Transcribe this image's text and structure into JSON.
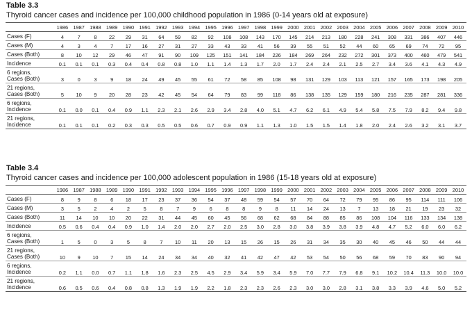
{
  "tables": [
    {
      "number": "Table 3.3",
      "caption": "Thyroid cancer cases and incidence per 100,000 childhood population in 1986 (0-14 years old at exposure)",
      "years": [
        "1986",
        "1987",
        "1988",
        "1989",
        "1990",
        "1991",
        "1992",
        "1993",
        "1994",
        "1995",
        "1996",
        "1997",
        "1998",
        "1999",
        "2000",
        "2001",
        "2002",
        "2003",
        "2004",
        "2005",
        "2006",
        "2007",
        "2008",
        "2009",
        "2010"
      ],
      "rows": [
        {
          "label": [
            "Cases (F)"
          ],
          "values": [
            "4",
            "7",
            "8",
            "22",
            "29",
            "31",
            "64",
            "59",
            "82",
            "92",
            "108",
            "108",
            "143",
            "170",
            "145",
            "214",
            "213",
            "180",
            "228",
            "241",
            "308",
            "331",
            "386",
            "407",
            "446"
          ]
        },
        {
          "label": [
            "Cases (M)"
          ],
          "values": [
            "4",
            "3",
            "4",
            "7",
            "17",
            "16",
            "27",
            "31",
            "27",
            "33",
            "43",
            "33",
            "41",
            "56",
            "39",
            "55",
            "51",
            "52",
            "44",
            "60",
            "65",
            "69",
            "74",
            "72",
            "95"
          ]
        },
        {
          "label": [
            "Cases (Both)"
          ],
          "values": [
            "8",
            "10",
            "12",
            "29",
            "46",
            "47",
            "91",
            "90",
            "109",
            "125",
            "151",
            "141",
            "184",
            "226",
            "184",
            "269",
            "264",
            "232",
            "272",
            "301",
            "373",
            "400",
            "460",
            "479",
            "541"
          ]
        },
        {
          "label": [
            "Incidence"
          ],
          "values": [
            "0.1",
            "0.1",
            "0.1",
            "0.3",
            "0.4",
            "0.4",
            "0.8",
            "0.8",
            "1.0",
            "1.1",
            "1.4",
            "1.3",
            "1.7",
            "2.0",
            "1.7",
            "2.4",
            "2.4",
            "2.1",
            "2.5",
            "2.7",
            "3.4",
            "3.6",
            "4.1",
            "4.3",
            "4.9"
          ]
        },
        {
          "label": [
            "6 regions,",
            "Cases (Both)"
          ],
          "values": [
            "3",
            "0",
            "3",
            "9",
            "18",
            "24",
            "49",
            "45",
            "55",
            "61",
            "72",
            "58",
            "85",
            "108",
            "98",
            "131",
            "129",
            "103",
            "113",
            "121",
            "157",
            "165",
            "173",
            "198",
            "205"
          ]
        },
        {
          "label": [
            "21 regions,",
            "Cases (Both)"
          ],
          "values": [
            "5",
            "10",
            "9",
            "20",
            "28",
            "23",
            "42",
            "45",
            "54",
            "64",
            "79",
            "83",
            "99",
            "118",
            "86",
            "138",
            "135",
            "129",
            "159",
            "180",
            "216",
            "235",
            "287",
            "281",
            "336"
          ]
        },
        {
          "label": [
            "6 regions,",
            "Incidence"
          ],
          "values": [
            "0.1",
            "0.0",
            "0.1",
            "0.4",
            "0.9",
            "1.1",
            "2.3",
            "2.1",
            "2.6",
            "2.9",
            "3.4",
            "2.8",
            "4.0",
            "5.1",
            "4.7",
            "6.2",
            "6.1",
            "4.9",
            "5.4",
            "5.8",
            "7.5",
            "7.9",
            "8.2",
            "9.4",
            "9.8"
          ]
        },
        {
          "label": [
            "21 regions,",
            "Incidence"
          ],
          "values": [
            "0.1",
            "0.1",
            "0.1",
            "0.2",
            "0.3",
            "0.3",
            "0.5",
            "0.5",
            "0.6",
            "0.7",
            "0.9",
            "0.9",
            "1.1",
            "1.3",
            "1.0",
            "1.5",
            "1.5",
            "1.4",
            "1.8",
            "2.0",
            "2.4",
            "2.6",
            "3.2",
            "3.1",
            "3.7"
          ]
        }
      ]
    },
    {
      "number": "Table 3.4",
      "caption": "Thyroid cancer cases and incidence per 100,000 adolescent population in 1986 (15-18 years old at exposure)",
      "years": [
        "1986",
        "1987",
        "1988",
        "1989",
        "1990",
        "1991",
        "1992",
        "1993",
        "1994",
        "1995",
        "1996",
        "1997",
        "1998",
        "1999",
        "2000",
        "2001",
        "2002",
        "2003",
        "2004",
        "2005",
        "2006",
        "2007",
        "2008",
        "2009",
        "2010"
      ],
      "rows": [
        {
          "label": [
            "Cases (F)"
          ],
          "values": [
            "8",
            "9",
            "8",
            "6",
            "18",
            "17",
            "23",
            "37",
            "36",
            "54",
            "37",
            "48",
            "59",
            "54",
            "57",
            "70",
            "64",
            "72",
            "79",
            "95",
            "86",
            "95",
            "114",
            "111",
            "106"
          ]
        },
        {
          "label": [
            "Cases (M)"
          ],
          "values": [
            "3",
            "5",
            "2",
            "4",
            "2",
            "5",
            "8",
            "7",
            "9",
            "6",
            "8",
            "8",
            "9",
            "8",
            "11",
            "14",
            "24",
            "13",
            "7",
            "13",
            "18",
            "21",
            "19",
            "23",
            "32"
          ]
        },
        {
          "label": [
            "Cases (Both)"
          ],
          "values": [
            "11",
            "14",
            "10",
            "10",
            "20",
            "22",
            "31",
            "44",
            "45",
            "60",
            "45",
            "56",
            "68",
            "62",
            "68",
            "84",
            "88",
            "85",
            "86",
            "108",
            "104",
            "116",
            "133",
            "134",
            "138"
          ]
        },
        {
          "label": [
            "Incidence"
          ],
          "values": [
            "0.5",
            "0.6",
            "0.4",
            "0.4",
            "0.9",
            "1.0",
            "1.4",
            "2.0",
            "2.0",
            "2.7",
            "2.0",
            "2.5",
            "3.0",
            "2.8",
            "3.0",
            "3.8",
            "3.9",
            "3.8",
            "3.9",
            "4.8",
            "4.7",
            "5.2",
            "6.0",
            "6.0",
            "6.2"
          ]
        },
        {
          "label": [
            "6 regions,",
            "Cases (Both)"
          ],
          "values": [
            "1",
            "5",
            "0",
            "3",
            "5",
            "8",
            "7",
            "10",
            "11",
            "20",
            "13",
            "15",
            "26",
            "15",
            "26",
            "31",
            "34",
            "35",
            "30",
            "40",
            "45",
            "46",
            "50",
            "44",
            "44"
          ]
        },
        {
          "label": [
            "21 regions,",
            "Cases (Both)"
          ],
          "values": [
            "10",
            "9",
            "10",
            "7",
            "15",
            "14",
            "24",
            "34",
            "34",
            "40",
            "32",
            "41",
            "42",
            "47",
            "42",
            "53",
            "54",
            "50",
            "56",
            "68",
            "59",
            "70",
            "83",
            "90",
            "94"
          ]
        },
        {
          "label": [
            "6 regions,",
            "Incidence"
          ],
          "values": [
            "0.2",
            "1.1",
            "0.0",
            "0.7",
            "1.1",
            "1.8",
            "1.6",
            "2.3",
            "2.5",
            "4.5",
            "2.9",
            "3.4",
            "5.9",
            "3.4",
            "5.9",
            "7.0",
            "7.7",
            "7.9",
            "6.8",
            "9.1",
            "10.2",
            "10.4",
            "11.3",
            "10.0",
            "10.0"
          ]
        },
        {
          "label": [
            "21 regions,",
            "Incidence"
          ],
          "values": [
            "0.6",
            "0.5",
            "0.6",
            "0.4",
            "0.8",
            "0.8",
            "1.3",
            "1.9",
            "1.9",
            "2.2",
            "1.8",
            "2.3",
            "2.3",
            "2.6",
            "2.3",
            "3.0",
            "3.0",
            "2.8",
            "3.1",
            "3.8",
            "3.3",
            "3.9",
            "4.6",
            "5.0",
            "5.2"
          ]
        }
      ]
    }
  ]
}
